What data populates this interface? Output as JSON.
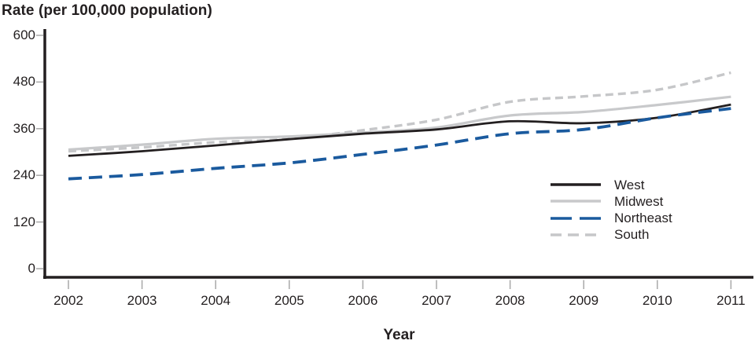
{
  "chart_data": {
    "type": "line",
    "title": "Rate (per 100,000 population)",
    "xlabel": "Year",
    "ylabel": "Rate (per 100,000 population)",
    "x": [
      2002,
      2003,
      2004,
      2005,
      2006,
      2007,
      2008,
      2009,
      2010,
      2011
    ],
    "yticks": [
      600,
      480,
      360,
      240,
      120,
      0
    ],
    "ylim": [
      0,
      600
    ],
    "grid": false,
    "legend_position": "right-middle",
    "series": [
      {
        "name": "West",
        "color": "#231f20",
        "line_style": "solid",
        "values": [
          290,
          302,
          317,
          333,
          347,
          358,
          379,
          374,
          388,
          422
        ]
      },
      {
        "name": "Midwest",
        "color": "#c8c9cb",
        "line_style": "solid",
        "values": [
          306,
          319,
          334,
          340,
          350,
          363,
          394,
          403,
          421,
          442
        ]
      },
      {
        "name": "Northeast",
        "color": "#1a5a9e",
        "line_style": "dashed-long",
        "values": [
          231,
          242,
          258,
          272,
          294,
          318,
          347,
          358,
          388,
          412
        ]
      },
      {
        "name": "South",
        "color": "#c6c7c9",
        "line_style": "dashed",
        "values": [
          302,
          312,
          325,
          334,
          356,
          383,
          429,
          443,
          460,
          504
        ]
      }
    ],
    "axis_color": "#231f20",
    "tick_mark_color": "#a8a8a8"
  }
}
